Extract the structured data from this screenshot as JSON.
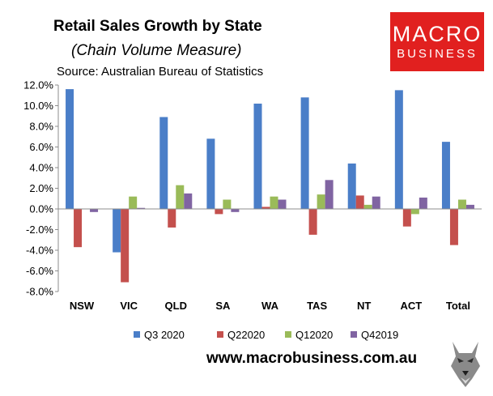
{
  "header": {
    "title": "Retail Sales Growth by State",
    "subtitle": "(Chain Volume Measure)",
    "source": "Source: Australian Bureau of Statistics"
  },
  "logo": {
    "line1": "MACRO",
    "line2": "BUSINESS",
    "color": "#e1201f"
  },
  "footer": {
    "website": "www.macrobusiness.com.au",
    "mascot_icon": "wolf-head-icon"
  },
  "chart_data": {
    "type": "bar",
    "categories": [
      "NSW",
      "VIC",
      "QLD",
      "SA",
      "WA",
      "TAS",
      "NT",
      "ACT",
      "Total"
    ],
    "series": [
      {
        "name": "Q3 2020",
        "color": "#4a7ec8",
        "values": [
          11.6,
          -4.2,
          8.9,
          6.8,
          10.2,
          10.8,
          4.4,
          11.5,
          6.5
        ]
      },
      {
        "name": "Q22020",
        "color": "#c4504d",
        "values": [
          -3.7,
          -7.1,
          -1.8,
          -0.5,
          0.2,
          -2.5,
          1.3,
          -1.7,
          -3.5
        ]
      },
      {
        "name": "Q12020",
        "color": "#9abb59",
        "values": [
          0.0,
          1.2,
          2.3,
          0.9,
          1.2,
          1.4,
          0.4,
          -0.5,
          0.9
        ]
      },
      {
        "name": "Q42019",
        "color": "#8064a2",
        "values": [
          -0.3,
          0.1,
          1.5,
          -0.3,
          0.9,
          2.8,
          1.2,
          1.1,
          0.4
        ]
      }
    ],
    "yticks": [
      "12.0%",
      "10.0%",
      "8.0%",
      "6.0%",
      "4.0%",
      "2.0%",
      "0.0%",
      "-2.0%",
      "-4.0%",
      "-6.0%",
      "-8.0%"
    ],
    "ylim": [
      -8,
      12
    ],
    "grid": false,
    "legend_position": "bottom"
  }
}
